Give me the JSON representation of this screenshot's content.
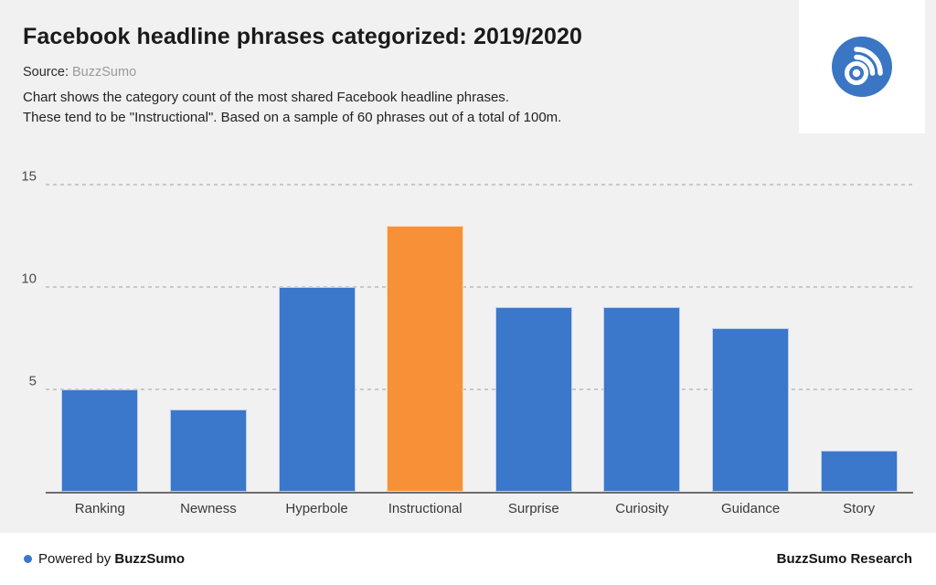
{
  "header": {
    "title": "Facebook headline phrases categorized: 2019/2020",
    "source_label": "Source:",
    "source_value": "BuzzSumo",
    "description_line1": "Chart shows the category count of the most shared Facebook headline phrases.",
    "description_line2": "These tend to be \"Instructional\". Based on a sample of 60 phrases out of a total of 100m."
  },
  "logo": {
    "name": "buzzsumo-logo",
    "circle_color": "#3a76c4"
  },
  "chart_data": {
    "type": "bar",
    "categories": [
      "Ranking",
      "Newness",
      "Hyperbole",
      "Instructional",
      "Surprise",
      "Curiosity",
      "Guidance",
      "Story"
    ],
    "values": [
      5,
      4,
      10,
      13,
      9,
      9,
      8,
      2
    ],
    "title": "Facebook headline phrases categorized: 2019/2020",
    "xlabel": "",
    "ylabel": "",
    "ylim": [
      0,
      15
    ],
    "yticks": [
      5,
      10,
      15
    ],
    "grid": "horizontal-dashed",
    "legend": "none",
    "bar_color": "#3b77ca",
    "highlight_category": "Instructional",
    "highlight_color": "#f79138"
  },
  "footer": {
    "powered_by_prefix": "Powered by",
    "powered_by_brand": "BuzzSumo",
    "research_label": "BuzzSumo Research",
    "dot_color": "#3b77ca"
  },
  "colors": {
    "background": "#f1f1f2",
    "footer_background": "#ffffff",
    "gridline": "#c9c9c9",
    "baseline": "#6e6e6e"
  }
}
